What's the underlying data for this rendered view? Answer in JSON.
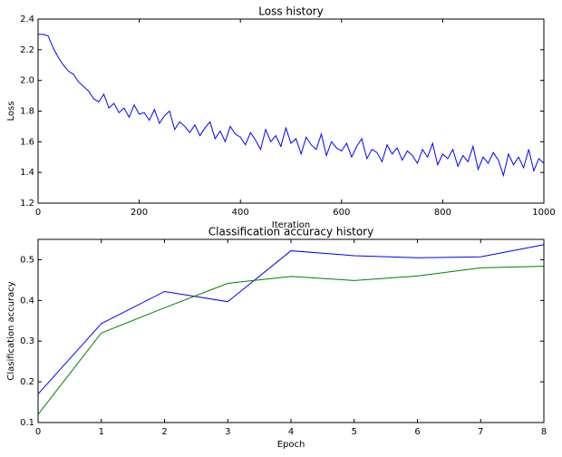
{
  "chart_data": [
    {
      "type": "line",
      "title": "Loss history",
      "xlabel": "Iteration",
      "ylabel": "Loss",
      "x": [
        0,
        10,
        20,
        30,
        40,
        50,
        60,
        70,
        80,
        90,
        100,
        110,
        120,
        130,
        140,
        150,
        160,
        170,
        180,
        190,
        200,
        210,
        220,
        230,
        240,
        250,
        260,
        270,
        280,
        290,
        300,
        310,
        320,
        330,
        340,
        350,
        360,
        370,
        380,
        390,
        400,
        410,
        420,
        430,
        440,
        450,
        460,
        470,
        480,
        490,
        500,
        510,
        520,
        530,
        540,
        550,
        560,
        570,
        580,
        590,
        600,
        610,
        620,
        630,
        640,
        650,
        660,
        670,
        680,
        690,
        700,
        710,
        720,
        730,
        740,
        750,
        760,
        770,
        780,
        790,
        800,
        810,
        820,
        830,
        840,
        850,
        860,
        870,
        880,
        890,
        900,
        910,
        920,
        930,
        940,
        950,
        960,
        970,
        980,
        990,
        1000
      ],
      "values": [
        2.3,
        2.3,
        2.29,
        2.21,
        2.15,
        2.1,
        2.06,
        2.04,
        1.99,
        1.96,
        1.93,
        1.88,
        1.86,
        1.91,
        1.82,
        1.85,
        1.79,
        1.82,
        1.76,
        1.84,
        1.78,
        1.79,
        1.74,
        1.81,
        1.72,
        1.77,
        1.8,
        1.68,
        1.73,
        1.7,
        1.66,
        1.71,
        1.64,
        1.69,
        1.73,
        1.62,
        1.67,
        1.6,
        1.7,
        1.65,
        1.63,
        1.58,
        1.66,
        1.61,
        1.55,
        1.68,
        1.6,
        1.64,
        1.57,
        1.69,
        1.59,
        1.62,
        1.52,
        1.63,
        1.58,
        1.55,
        1.65,
        1.51,
        1.6,
        1.56,
        1.54,
        1.59,
        1.5,
        1.57,
        1.62,
        1.49,
        1.55,
        1.53,
        1.47,
        1.58,
        1.52,
        1.56,
        1.48,
        1.54,
        1.51,
        1.46,
        1.55,
        1.5,
        1.59,
        1.45,
        1.52,
        1.49,
        1.55,
        1.44,
        1.51,
        1.47,
        1.57,
        1.42,
        1.5,
        1.46,
        1.53,
        1.48,
        1.38,
        1.52,
        1.45,
        1.5,
        1.43,
        1.55,
        1.41,
        1.49,
        1.46
      ],
      "color": "#0000ff",
      "xlim": [
        0,
        1000
      ],
      "xticks": [
        0,
        200,
        400,
        600,
        800,
        1000
      ],
      "ylim": [
        1.2,
        2.4
      ],
      "yticks": [
        1.2,
        1.4,
        1.6,
        1.8,
        {
          "value": 2,
          "label": "2.0"
        },
        2.2,
        2.4
      ]
    },
    {
      "type": "line",
      "title": "Classification accuracy history",
      "xlabel": "Epoch",
      "ylabel": "Clasification accuracy",
      "x": [
        0,
        1,
        2,
        3,
        4,
        5,
        6,
        7,
        8
      ],
      "series": [
        {
          "color": "#0000ff",
          "values": [
            0.17,
            0.343,
            0.422,
            0.397,
            0.522,
            0.51,
            0.505,
            0.507,
            0.537
          ]
        },
        {
          "color": "#008000",
          "values": [
            0.12,
            0.32,
            0.382,
            0.442,
            0.459,
            0.449,
            0.46,
            0.48,
            0.484
          ]
        }
      ],
      "xlim": [
        0,
        8
      ],
      "xticks": [
        0,
        1,
        2,
        3,
        4,
        5,
        6,
        7,
        8
      ],
      "ylim": [
        0.1,
        0.55
      ],
      "yticks": [
        0.1,
        0.2,
        0.3,
        0.4,
        0.5
      ]
    }
  ]
}
